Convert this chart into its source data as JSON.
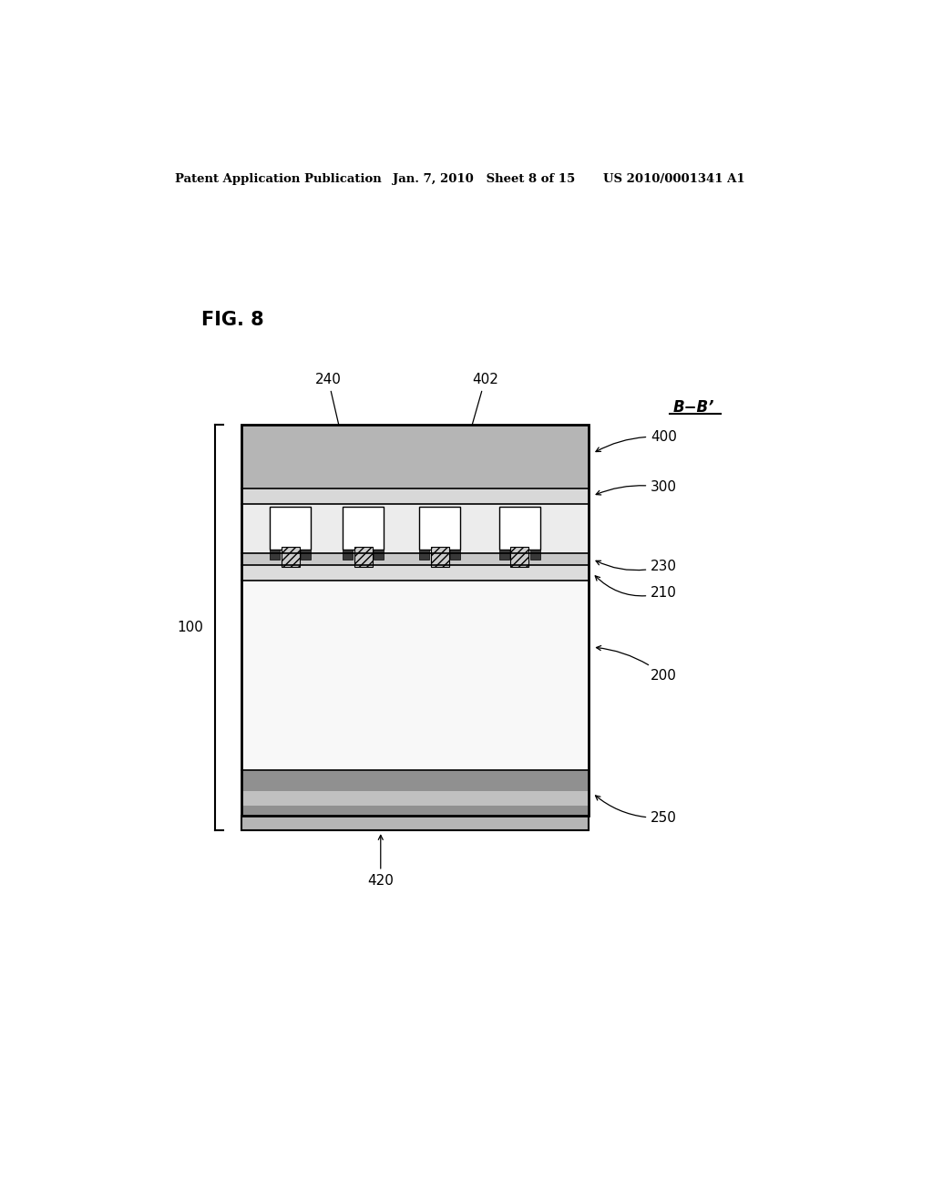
{
  "header_left": "Patent Application Publication",
  "header_mid": "Jan. 7, 2010   Sheet 8 of 15",
  "header_right": "US 2010/0001341 A1",
  "bb_label": "B−B’",
  "fig_label": "FIG. 8",
  "bg_color": "#ffffff",
  "colors": {
    "layer_400": "#b8b8b8",
    "layer_300": "#d0d0d0",
    "layer_200": "#f0f0f0",
    "layer_250_top": "#a0a0a0",
    "layer_250_bot": "#c8c8c8",
    "layer_210": "#e0e0e0",
    "layer_230": "#d0d0d0",
    "bump_fill": "#ffffff",
    "post_fill": "#d0d0d0",
    "dark_sq": "#404040",
    "outline": "#000000",
    "electrode_420": "#c0c0c0"
  }
}
